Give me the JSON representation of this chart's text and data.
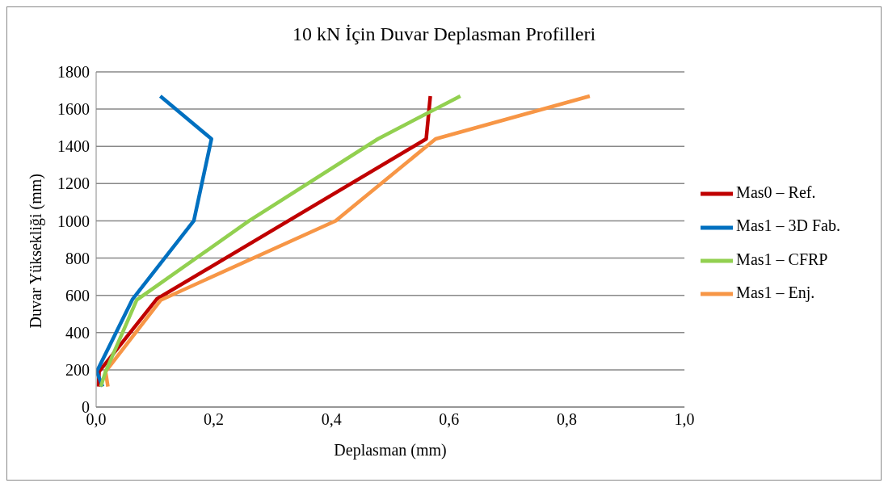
{
  "chart_data": {
    "type": "line",
    "title": "10 kN İçin Duvar Deplasman Profilleri",
    "xlabel": "Deplasman (mm)",
    "ylabel": "Duvar Yüksekliği  (mm)",
    "series": [
      {
        "name": "Mas0 – Ref.",
        "color": "#c00000",
        "x": [
          0.004,
          0.005,
          0.103,
          0.561,
          0.568
        ],
        "values": [
          110,
          190,
          580,
          1440,
          1670
        ]
      },
      {
        "name": "Mas1 – Enj.",
        "color": "#f79646",
        "x": [
          0.02,
          0.016,
          0.11,
          0.407,
          0.577,
          0.839
        ],
        "values": [
          110,
          190,
          575,
          1000,
          1440,
          1670
        ]
      },
      {
        "name": "Mas1 – 3D Fab.",
        "color": "#0070c0",
        "x": [
          0.011,
          0.001,
          0.062,
          0.166,
          0.196,
          0.109
        ],
        "values": [
          110,
          190,
          580,
          1000,
          1440,
          1670
        ]
      },
      {
        "name": "Mas1 – CFRP",
        "color": "#92d050",
        "x": [
          0.008,
          0.016,
          0.069,
          0.26,
          0.479,
          0.619
        ],
        "values": [
          110,
          190,
          575,
          1000,
          1440,
          1670
        ]
      }
    ],
    "xlim": [
      0,
      1
    ],
    "xticks": [
      {
        "value": 0,
        "label": "0,0"
      },
      {
        "value": 0.2,
        "label": "0,2"
      },
      {
        "value": 0.4,
        "label": "0,4"
      },
      {
        "value": 0.6,
        "label": "0,6"
      },
      {
        "value": 0.8,
        "label": "0,8"
      },
      {
        "value": 1,
        "label": "1,0"
      }
    ],
    "ylim": [
      0,
      1800
    ],
    "yticks": [
      0,
      200,
      400,
      600,
      800,
      1000,
      1200,
      1400,
      1600,
      1800
    ],
    "grid": "y",
    "legend": "right",
    "line_style": "solid",
    "marker": "none"
  }
}
